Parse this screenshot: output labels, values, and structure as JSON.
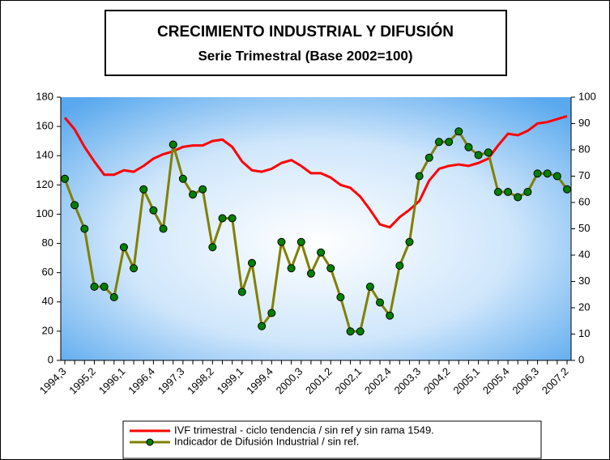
{
  "chart_data": {
    "type": "line",
    "title": "CRECIMIENTO INDUSTRIAL Y DIFUSIÓN",
    "subtitle": "Serie Trimestral (Base 2002=100)",
    "categories": [
      "1994,3",
      null,
      null,
      "1995,2",
      null,
      null,
      "1996,1",
      null,
      null,
      "1996,4",
      null,
      null,
      "1997,3",
      null,
      null,
      "1998,2",
      null,
      null,
      "1999,1",
      null,
      null,
      "1999,4",
      null,
      null,
      "2000,3",
      null,
      null,
      "2001,2",
      null,
      null,
      "2002,1",
      null,
      null,
      "2002,4",
      null,
      null,
      "2003,3",
      null,
      null,
      "2004,2",
      null,
      null,
      "2005,1",
      null,
      null,
      "2005,4",
      null,
      null,
      "2006,3",
      null,
      null,
      "2007,2"
    ],
    "series": [
      {
        "name": "IVF trimestral - ciclo tendencia / sin ref y sin rama 1549.",
        "color": "#ff0000",
        "values": [
          166,
          158,
          146,
          136,
          127,
          127,
          130,
          129,
          133,
          138,
          141,
          143,
          146,
          147,
          147,
          150,
          151,
          146,
          136,
          130,
          129,
          131,
          135,
          137,
          133,
          128,
          128,
          125,
          120,
          118,
          112,
          103,
          93,
          91,
          98,
          103,
          109,
          123,
          131,
          133,
          134,
          133,
          135,
          138,
          147,
          155,
          154,
          157,
          162,
          163,
          165,
          167
        ]
      },
      {
        "name": "Indicador de Difusión Industrial / sin ref.",
        "color": "#808000",
        "axis": "y2",
        "marker_color": "#008000",
        "values": [
          69,
          59,
          50,
          28,
          28,
          24,
          43,
          35,
          65,
          57,
          50,
          82,
          69,
          63,
          65,
          43,
          54,
          54,
          26,
          37,
          13,
          18,
          45,
          35,
          45,
          33,
          41,
          35,
          24,
          11,
          11,
          28,
          22,
          17,
          36,
          45,
          70,
          77,
          83,
          83,
          87,
          81,
          78,
          79,
          64,
          64,
          62,
          64,
          71,
          71,
          70,
          65
        ]
      }
    ],
    "ylim": [
      0,
      180
    ],
    "yticks": [
      0,
      20,
      40,
      60,
      80,
      100,
      120,
      140,
      160,
      180
    ],
    "y2lim": [
      0,
      100
    ],
    "y2ticks": [
      0,
      10,
      20,
      30,
      40,
      50,
      60,
      70,
      80,
      90,
      100
    ],
    "legend": "bottom"
  }
}
